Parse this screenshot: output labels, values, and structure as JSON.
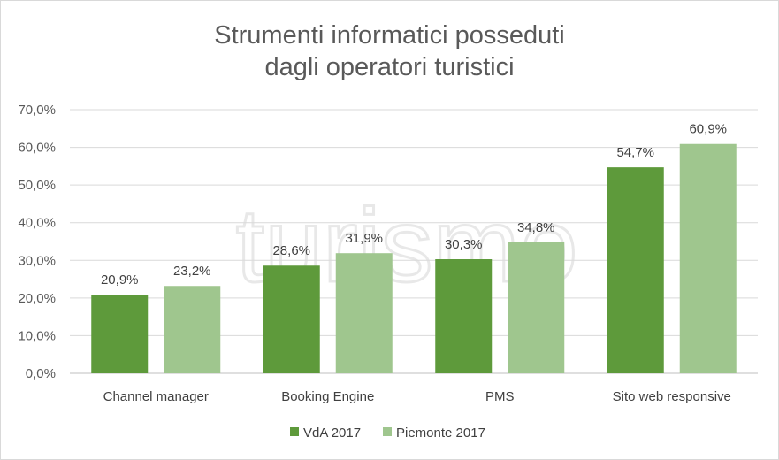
{
  "chart_data": {
    "type": "bar",
    "title_line1": "Strumenti informatici posseduti",
    "title_line2": "dagli operatori turistici",
    "categories": [
      "Channel manager",
      "Booking Engine",
      "PMS",
      "Sito web responsive"
    ],
    "series": [
      {
        "name": "VdA 2017",
        "color": "#5e9a3b",
        "values": [
          20.9,
          28.6,
          30.3,
          54.7
        ],
        "labels": [
          "20,9%",
          "28,6%",
          "30,3%",
          "54,7%"
        ]
      },
      {
        "name": "Piemonte 2017",
        "color": "#9fc68e",
        "values": [
          23.2,
          31.9,
          34.8,
          60.9
        ],
        "labels": [
          "23,2%",
          "31,9%",
          "34,8%",
          "60,9%"
        ]
      }
    ],
    "ylim": [
      0,
      70
    ],
    "yticks": [
      0,
      10,
      20,
      30,
      40,
      50,
      60,
      70
    ],
    "ytick_labels": [
      "0,0%",
      "10,0%",
      "20,0%",
      "30,0%",
      "40,0%",
      "50,0%",
      "60,0%",
      "70,0%"
    ],
    "grid": true,
    "legend_position": "bottom",
    "watermark": "turismo"
  }
}
